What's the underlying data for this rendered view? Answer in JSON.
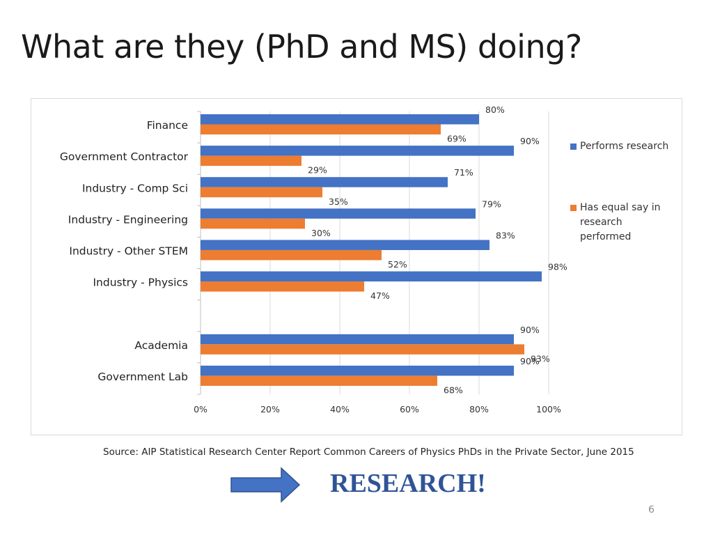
{
  "slide": {
    "title": "What are they (PhD and MS) doing?",
    "source": "Source: AIP Statistical Research Center Report Common Careers of Physics PhDs in the Private Sector, June 2015",
    "callout": "RESEARCH!",
    "page_number": "6",
    "arrow_icon": "right-arrow-icon",
    "arrow_color": "#4472C4",
    "callout_color": "#2F5496"
  },
  "chart_data": {
    "type": "bar",
    "orientation": "horizontal",
    "categories": [
      "Finance",
      "Government Contractor",
      "Industry - Comp Sci",
      "Industry - Engineering",
      "Industry - Other STEM",
      "Industry - Physics",
      "",
      "Academia",
      "Government Lab"
    ],
    "series": [
      {
        "name": "Performs research",
        "color": "#4472C4",
        "values": [
          80,
          90,
          71,
          79,
          83,
          98,
          null,
          90,
          90
        ],
        "labels": [
          "80%",
          "90%",
          "71%",
          "79%",
          "83%",
          "98%",
          "",
          "90%",
          "90%"
        ]
      },
      {
        "name": "Has equal say in research performed",
        "color": "#ED7D31",
        "values": [
          69,
          29,
          35,
          30,
          52,
          47,
          null,
          93,
          68
        ],
        "labels": [
          "69%",
          "29%",
          "35%",
          "30%",
          "52%",
          "47%",
          "",
          "93%",
          "68%"
        ]
      }
    ],
    "xlim": [
      0,
      100
    ],
    "x_ticks": [
      0,
      20,
      40,
      60,
      80,
      100
    ],
    "x_tick_labels": [
      "0%",
      "20%",
      "40%",
      "60%",
      "80%",
      "100%"
    ],
    "grid": true,
    "legend": {
      "position": "right",
      "entries": [
        "Performs research",
        "Has equal say in research performed"
      ]
    }
  }
}
